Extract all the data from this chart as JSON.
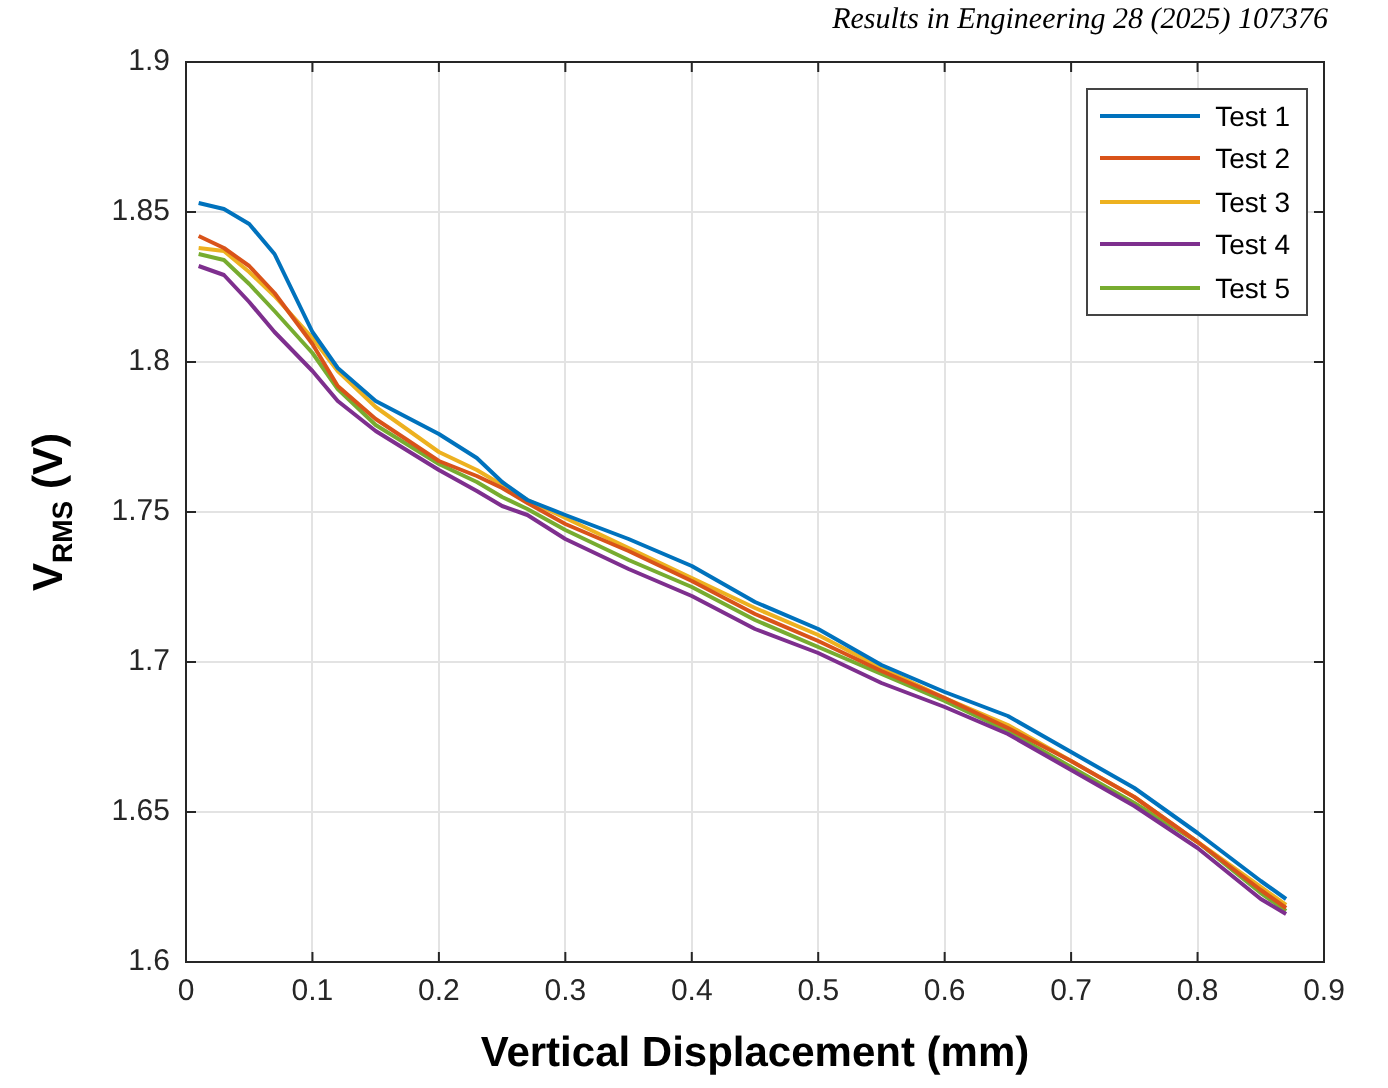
{
  "chart_data": {
    "type": "line",
    "xlabel": "Vertical Displacement (mm)",
    "ylabel": "V$_{RMS}$ (V)",
    "annotations": [
      "Results in Engineering 28 (2025) 107376"
    ],
    "x": [
      0.01,
      0.03,
      0.05,
      0.07,
      0.1,
      0.12,
      0.15,
      0.2,
      0.23,
      0.25,
      0.27,
      0.3,
      0.35,
      0.4,
      0.45,
      0.5,
      0.55,
      0.6,
      0.65,
      0.7,
      0.75,
      0.8,
      0.85,
      0.87
    ],
    "series": [
      {
        "name": "Test 1",
        "color": "#0072bd",
        "values": [
          1.853,
          1.851,
          1.846,
          1.836,
          1.81,
          1.798,
          1.787,
          1.776,
          1.768,
          1.76,
          1.754,
          1.749,
          1.741,
          1.732,
          1.72,
          1.711,
          1.699,
          1.69,
          1.682,
          1.67,
          1.658,
          1.643,
          1.627,
          1.621
        ]
      },
      {
        "name": "Test 2",
        "color": "#d95319",
        "values": [
          1.842,
          1.838,
          1.832,
          1.823,
          1.806,
          1.792,
          1.781,
          1.767,
          1.762,
          1.758,
          1.753,
          1.746,
          1.737,
          1.727,
          1.716,
          1.707,
          1.697,
          1.688,
          1.678,
          1.667,
          1.655,
          1.64,
          1.624,
          1.618
        ]
      },
      {
        "name": "Test 3",
        "color": "#edb120",
        "values": [
          1.838,
          1.837,
          1.83,
          1.822,
          1.808,
          1.797,
          1.785,
          1.77,
          1.764,
          1.759,
          1.754,
          1.748,
          1.738,
          1.728,
          1.718,
          1.709,
          1.698,
          1.688,
          1.679,
          1.667,
          1.655,
          1.64,
          1.625,
          1.619
        ]
      },
      {
        "name": "Test 4",
        "color": "#7e2f8e",
        "values": [
          1.832,
          1.829,
          1.82,
          1.81,
          1.797,
          1.787,
          1.777,
          1.764,
          1.757,
          1.752,
          1.749,
          1.741,
          1.731,
          1.722,
          1.711,
          1.703,
          1.693,
          1.685,
          1.676,
          1.664,
          1.652,
          1.638,
          1.621,
          1.616
        ]
      },
      {
        "name": "Test 5",
        "color": "#77ac30",
        "values": [
          1.836,
          1.834,
          1.826,
          1.817,
          1.803,
          1.791,
          1.779,
          1.766,
          1.76,
          1.755,
          1.751,
          1.744,
          1.734,
          1.725,
          1.714,
          1.705,
          1.696,
          1.687,
          1.677,
          1.665,
          1.653,
          1.64,
          1.623,
          1.617
        ]
      }
    ],
    "xlim": [
      0,
      0.9
    ],
    "xticks": [
      0,
      0.1,
      0.2,
      0.3,
      0.4,
      0.5,
      0.6,
      0.7,
      0.8,
      0.9
    ],
    "ylim": [
      1.6,
      1.9
    ],
    "yticks": [
      1.6,
      1.65,
      1.7,
      1.75,
      1.8,
      1.85,
      1.9
    ],
    "grid": true,
    "legend": "top right",
    "marker": "none",
    "line_style": "solid"
  }
}
